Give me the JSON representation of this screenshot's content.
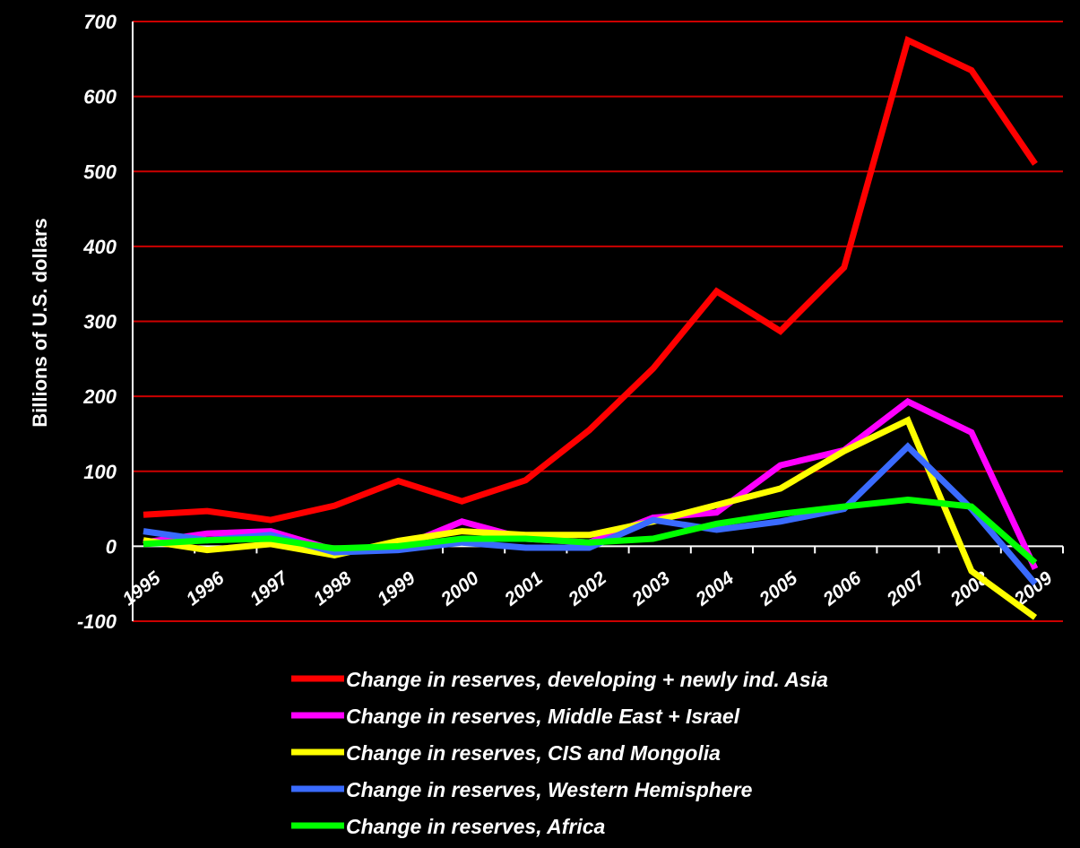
{
  "chart_data": {
    "type": "line",
    "title": "",
    "xlabel": "",
    "ylabel": "Billions of U.S. dollars",
    "categories": [
      "1995",
      "1996",
      "1997",
      "1998",
      "1999",
      "2000",
      "2001",
      "2002",
      "2003",
      "2004",
      "2005",
      "2006",
      "2007",
      "2008",
      "2009"
    ],
    "ylim": [
      -100,
      700
    ],
    "yticks": [
      "700",
      "600",
      "500",
      "400",
      "300",
      "200",
      "100",
      "0",
      "-100"
    ],
    "ytick_values": [
      700,
      600,
      500,
      400,
      300,
      200,
      100,
      0,
      -100
    ],
    "grid": true,
    "grid_color": "#cc0000",
    "background": "#000000",
    "legend_position": "bottom",
    "series": [
      {
        "name": "Change in reserves, developing + newly ind. Asia",
        "color": "#ff0000",
        "values": [
          42,
          47,
          35,
          54,
          87,
          60,
          88,
          155,
          237,
          340,
          287,
          372,
          675,
          635,
          510
        ]
      },
      {
        "name": "Change in reserves, Middle East + Israel",
        "color": "#ff00ff",
        "values": [
          5,
          17,
          20,
          -5,
          -2,
          33,
          10,
          5,
          38,
          45,
          108,
          128,
          193,
          152,
          -30
        ]
      },
      {
        "name": "Change in reserves, CIS and Mongolia",
        "color": "#ffff00",
        "values": [
          8,
          -5,
          3,
          -12,
          7,
          20,
          15,
          15,
          33,
          55,
          77,
          127,
          168,
          -33,
          -95
        ]
      },
      {
        "name": "Change in reserves, Western Hemisphere",
        "color": "#3a6bff",
        "values": [
          20,
          8,
          15,
          -8,
          -5,
          5,
          -2,
          -2,
          35,
          22,
          33,
          50,
          133,
          50,
          -50
        ]
      },
      {
        "name": "Change in reserves, Africa",
        "color": "#00ff00",
        "values": [
          3,
          8,
          10,
          -3,
          0,
          10,
          10,
          5,
          10,
          30,
          43,
          53,
          62,
          53,
          -22
        ]
      }
    ]
  }
}
